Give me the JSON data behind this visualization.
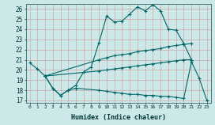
{
  "xlabel": "Humidex (Indice chaleur)",
  "bg_color": "#cce8e8",
  "grid_color": "#cc9999",
  "line_color": "#006666",
  "xlim": [
    -0.5,
    23.5
  ],
  "ylim": [
    16.8,
    26.5
  ],
  "xticks": [
    0,
    1,
    2,
    3,
    4,
    5,
    6,
    7,
    8,
    9,
    10,
    11,
    12,
    13,
    14,
    15,
    16,
    17,
    18,
    19,
    20,
    21,
    22,
    23
  ],
  "yticks": [
    17,
    18,
    19,
    20,
    21,
    22,
    23,
    24,
    25,
    26
  ],
  "series": [
    {
      "x": [
        0,
        1,
        2,
        3,
        4,
        5,
        6,
        7,
        8,
        9,
        10,
        11,
        12,
        13,
        14,
        15,
        16,
        17,
        18,
        19,
        20,
        21
      ],
      "y": [
        20.7,
        20.1,
        19.4,
        18.2,
        17.5,
        18.0,
        18.5,
        19.8,
        20.3,
        22.7,
        25.3,
        24.7,
        24.8,
        25.5,
        26.2,
        25.8,
        26.4,
        25.8,
        24.0,
        23.9,
        22.6,
        21.0
      ]
    },
    {
      "x": [
        2,
        9,
        10,
        11,
        12,
        13,
        14,
        15,
        16,
        17,
        18,
        19,
        20,
        21
      ],
      "y": [
        19.4,
        21.0,
        21.2,
        21.4,
        21.5,
        21.6,
        21.8,
        21.9,
        22.0,
        22.1,
        22.3,
        22.4,
        22.5,
        22.6
      ]
    },
    {
      "x": [
        2,
        9,
        10,
        11,
        12,
        13,
        14,
        15,
        16,
        17,
        18,
        19,
        20,
        21
      ],
      "y": [
        19.4,
        19.9,
        20.0,
        20.1,
        20.2,
        20.3,
        20.4,
        20.5,
        20.6,
        20.7,
        20.8,
        20.9,
        21.0,
        21.0
      ]
    },
    {
      "x": [
        2,
        3,
        4,
        5,
        6,
        9,
        10,
        11,
        12,
        13,
        14,
        15,
        16,
        17,
        18,
        19,
        20,
        21,
        22,
        23
      ],
      "y": [
        19.4,
        18.2,
        17.5,
        18.0,
        18.2,
        18.0,
        17.9,
        17.8,
        17.7,
        17.6,
        17.6,
        17.5,
        17.5,
        17.4,
        17.4,
        17.3,
        17.2,
        20.8,
        19.2,
        17.0
      ]
    }
  ]
}
